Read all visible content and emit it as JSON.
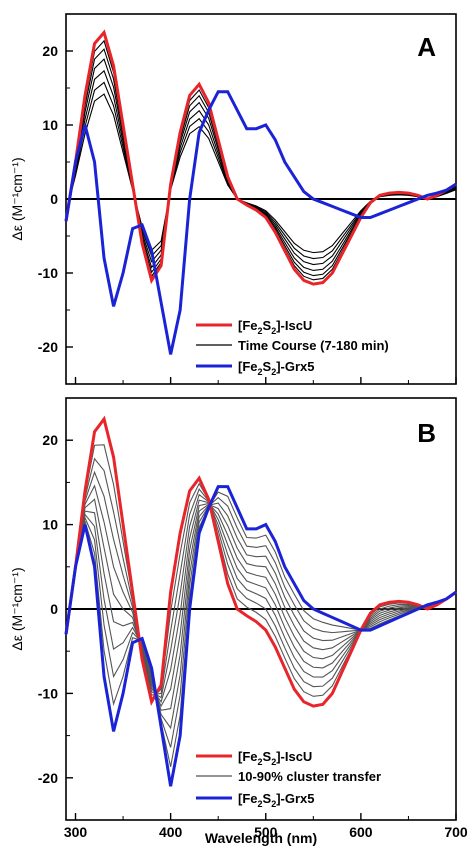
{
  "figure": {
    "xlabel": "Wavelength (nm)",
    "ylabel": "Δε (M⁻¹cm⁻¹)"
  },
  "colors": {
    "iscu": "#e8252b",
    "grx5": "#1a23d6",
    "time_course": "#000000",
    "transfer": "#555555",
    "zero_line": "#000000"
  },
  "chart_data": [
    {
      "type": "line",
      "panel_label": "A",
      "title": "",
      "xlabel": "",
      "ylabel": "Δε (M⁻¹cm⁻¹)",
      "xlim": [
        290,
        700
      ],
      "ylim": [
        -25,
        25
      ],
      "x_ticks": [
        300,
        400,
        500,
        600,
        700
      ],
      "y_ticks": [
        -20,
        -10,
        0,
        10,
        20
      ],
      "legend_position": "bottom-right",
      "legend": [
        {
          "label_base": "[Fe",
          "sub1": "2",
          "mid": "S",
          "sub2": "2",
          "label_tail": "]-IscU",
          "color": "#e8252b",
          "width": 3
        },
        {
          "label_base": "Time Course (7-180 min)",
          "color": "#000000",
          "width": 1.2
        },
        {
          "label_base": "[Fe",
          "sub1": "2",
          "mid": "S",
          "sub2": "2",
          "label_tail": "]-Grx5",
          "color": "#1a23d6",
          "width": 3
        }
      ],
      "x": [
        290,
        300,
        310,
        320,
        330,
        340,
        350,
        360,
        370,
        380,
        390,
        400,
        410,
        420,
        430,
        440,
        450,
        460,
        470,
        480,
        490,
        500,
        510,
        520,
        530,
        540,
        550,
        560,
        570,
        580,
        590,
        600,
        610,
        620,
        630,
        640,
        650,
        660,
        670,
        680,
        690,
        700
      ],
      "iscu": [
        -3,
        5,
        14,
        21,
        22.5,
        18,
        10,
        2,
        -6,
        -11,
        -9,
        2,
        9,
        14,
        15.5,
        13,
        8,
        3,
        0,
        -0.8,
        -1.5,
        -2.5,
        -4.5,
        -7,
        -9.5,
        -11,
        -11.5,
        -11.3,
        -10,
        -7.5,
        -5,
        -2.5,
        -0.5,
        0.5,
        0.8,
        0.9,
        0.8,
        0.5,
        0,
        0.5,
        1.2,
        2
      ],
      "grx5": [
        -3,
        5,
        10,
        5,
        -8,
        -14.5,
        -10,
        -4,
        -3.5,
        -7,
        -14,
        -21,
        -15,
        0,
        9,
        12,
        14.5,
        14.5,
        12,
        9.5,
        9.5,
        10,
        8,
        5,
        3,
        1,
        0,
        -0.5,
        -1,
        -1.5,
        -2,
        -2.5,
        -2.5,
        -2,
        -1.5,
        -1,
        -0.5,
        0,
        0.5,
        0.8,
        1.2,
        2
      ],
      "time_course_fractions": [
        0.95,
        0.9,
        0.84,
        0.77,
        0.7,
        0.63
      ]
    },
    {
      "type": "line",
      "panel_label": "B",
      "title": "",
      "xlabel": "Wavelength (nm)",
      "ylabel": "Δε (M⁻¹cm⁻¹)",
      "xlim": [
        290,
        700
      ],
      "ylim": [
        -25,
        25
      ],
      "x_ticks": [
        300,
        400,
        500,
        600,
        700
      ],
      "y_ticks": [
        -20,
        -10,
        0,
        10,
        20
      ],
      "legend_position": "bottom-right",
      "legend": [
        {
          "label_base": "[Fe",
          "sub1": "2",
          "mid": "S",
          "sub2": "2",
          "label_tail": "]-IscU",
          "color": "#e8252b",
          "width": 3
        },
        {
          "label_base": "10-90% cluster transfer",
          "color": "#555555",
          "width": 1.2
        },
        {
          "label_base": "[Fe",
          "sub1": "2",
          "mid": "S",
          "sub2": "2",
          "label_tail": "]-Grx5",
          "color": "#1a23d6",
          "width": 3
        }
      ],
      "transfer_percent": [
        10,
        20,
        30,
        40,
        50,
        60,
        70,
        80,
        90
      ]
    }
  ]
}
